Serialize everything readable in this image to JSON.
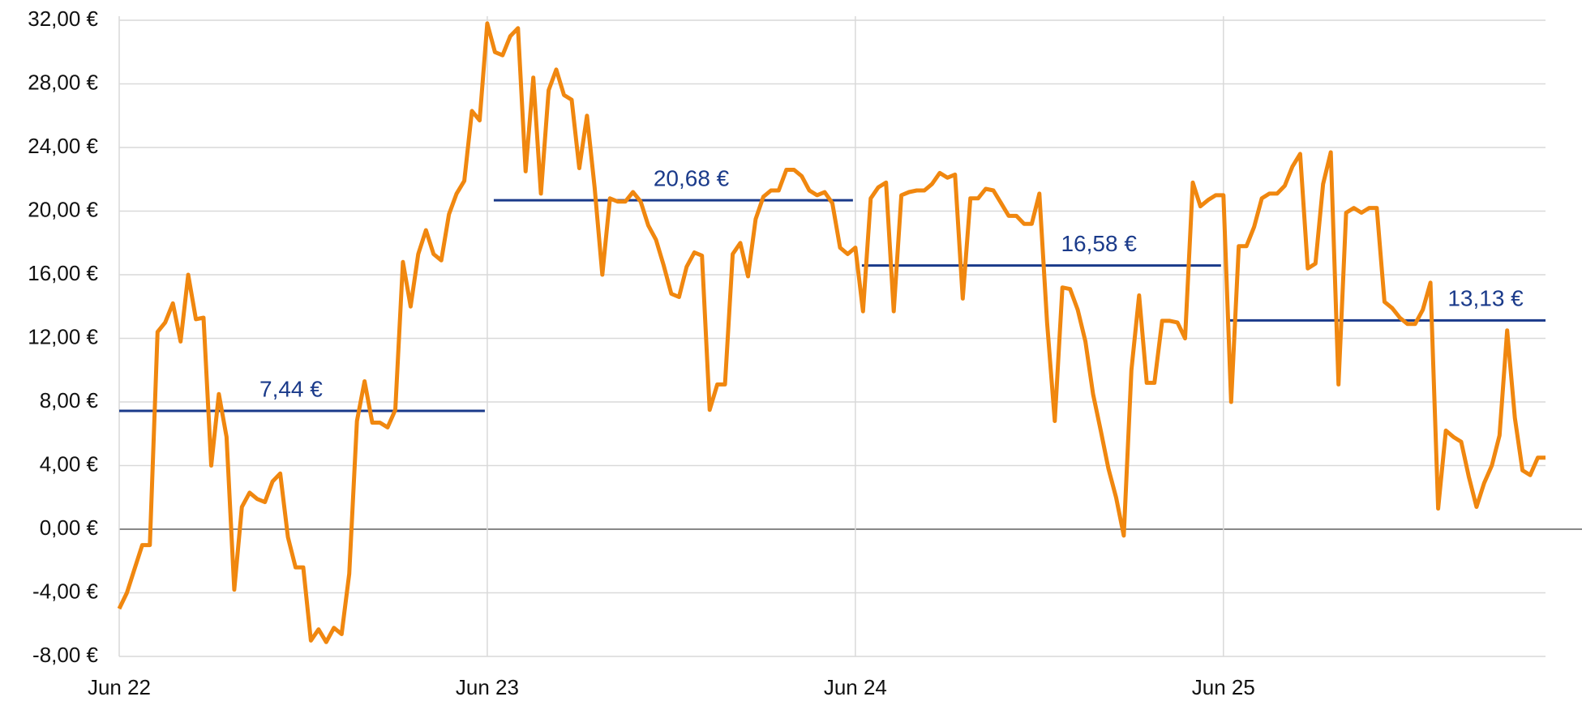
{
  "chart_data": {
    "type": "line",
    "categories": [
      "Jun 22",
      null,
      null,
      null,
      null,
      null,
      null,
      null,
      null,
      null,
      null,
      null,
      null,
      null,
      null,
      null,
      null,
      null,
      null,
      null,
      null,
      null,
      null,
      null,
      null,
      null,
      null,
      null,
      null,
      null,
      null,
      null,
      null,
      null,
      null,
      null,
      null,
      null,
      null,
      null,
      null,
      null,
      null,
      null,
      null,
      null,
      null,
      null,
      "Jun 23",
      null,
      null,
      null,
      null,
      null,
      null,
      null,
      null,
      null,
      null,
      null,
      null,
      null,
      null,
      null,
      null,
      null,
      null,
      null,
      null,
      null,
      null,
      null,
      null,
      null,
      null,
      null,
      null,
      null,
      null,
      null,
      null,
      null,
      null,
      null,
      null,
      null,
      null,
      null,
      null,
      null,
      null,
      null,
      null,
      null,
      null,
      null,
      "Jun 24",
      null,
      null,
      null,
      null,
      null,
      null,
      null,
      null,
      null,
      null,
      null,
      null,
      null,
      null,
      null,
      null,
      null,
      null,
      null,
      null,
      null,
      null,
      null,
      null,
      null,
      null,
      null,
      null,
      null,
      null,
      null,
      null,
      null,
      null,
      null,
      null,
      null,
      null,
      null,
      null,
      null,
      null,
      null,
      null,
      null,
      null,
      null,
      "Jun 25",
      null,
      null,
      null,
      null,
      null,
      null,
      null,
      null,
      null,
      null,
      null,
      null,
      null,
      null,
      null,
      null,
      null,
      null,
      null,
      null,
      null,
      null,
      null,
      null,
      null,
      null,
      null,
      null,
      null,
      null,
      null,
      null,
      null,
      null,
      null,
      null,
      null,
      null,
      null,
      null,
      null,
      null
    ],
    "series": [
      {
        "color": "#f0870f",
        "values": [
          -5,
          -4,
          -2.5,
          -1,
          -1,
          12.4,
          13,
          14.2,
          11.8,
          16,
          13.2,
          13.3,
          4,
          8.5,
          5.8,
          -3.8,
          1.4,
          2.3,
          1.9,
          1.7,
          3,
          3.5,
          -0.5,
          -2.4,
          -2.4,
          -7,
          -6.3,
          -7.1,
          -6.2,
          -6.6,
          -2.8,
          6.8,
          9.3,
          6.7,
          6.7,
          6.4,
          7.5,
          16.8,
          14,
          17.3,
          18.8,
          17.3,
          16.9,
          19.8,
          21.1,
          21.9,
          26.3,
          25.7,
          31.8,
          30,
          29.8,
          31,
          31.5,
          22.5,
          28.4,
          21.1,
          27.6,
          28.9,
          27.3,
          27,
          22.7,
          26,
          21.5,
          16,
          20.8,
          20.6,
          20.6,
          21.2,
          20.6,
          19.1,
          18.2,
          16.6,
          14.8,
          14.6,
          16.5,
          17.4,
          17.2,
          7.5,
          9.1,
          9.1,
          17.3,
          18,
          15.9,
          19.5,
          20.9,
          21.3,
          21.3,
          22.6,
          22.6,
          22.2,
          21.3,
          21,
          21.2,
          20.5,
          17.7,
          17.3,
          17.7,
          13.7,
          20.8,
          21.5,
          21.8,
          13.7,
          21,
          21.2,
          21.3,
          21.3,
          21.7,
          22.4,
          22.1,
          22.3,
          14.5,
          20.8,
          20.8,
          21.4,
          21.3,
          20.5,
          19.7,
          19.7,
          19.2,
          19.2,
          21.1,
          13,
          6.8,
          15.2,
          15.1,
          13.8,
          11.8,
          8.5,
          6.2,
          3.8,
          2,
          -0.4,
          10,
          14.7,
          9.2,
          9.2,
          13.1,
          13.1,
          13,
          12,
          21.8,
          20.3,
          20.7,
          21,
          21,
          8,
          17.8,
          17.8,
          19,
          20.8,
          21.1,
          21.1,
          21.6,
          22.8,
          23.6,
          16.4,
          16.7,
          21.7,
          23.7,
          9.1,
          19.9,
          20.2,
          19.9,
          20.2,
          20.2,
          14.3,
          13.9,
          13.3,
          12.9,
          12.9,
          13.8,
          15.5,
          1.3,
          6.2,
          5.8,
          5.5,
          3.3,
          1.4,
          2.9,
          4,
          5.9,
          12.5,
          7,
          3.7,
          3.4,
          4.5,
          4.5
        ]
      }
    ],
    "averages": {
      "color": "#1a3a8a",
      "values": [
        7.44,
        20.68,
        16.58,
        13.13
      ],
      "value_labels": [
        "7,44 €",
        "20,68 €",
        "16,58 €",
        "13,13 €"
      ]
    },
    "ylim": [
      -8,
      32
    ],
    "yticks": [
      {
        "value": -8,
        "label": "-8,00 €"
      },
      {
        "value": -4,
        "label": "-4,00 €"
      },
      {
        "value": 0,
        "label": "0,00 €"
      },
      {
        "value": 4,
        "label": "4,00 €"
      },
      {
        "value": 8,
        "label": "8,00 €"
      },
      {
        "value": 12,
        "label": "12,00 €"
      },
      {
        "value": 16,
        "label": "16,00 €"
      },
      {
        "value": 20,
        "label": "20,00 €"
      },
      {
        "value": 24,
        "label": "24,00 €"
      },
      {
        "value": 28,
        "label": "28,00 €"
      },
      {
        "value": 32,
        "label": "32,00 €"
      }
    ],
    "grid": true
  }
}
